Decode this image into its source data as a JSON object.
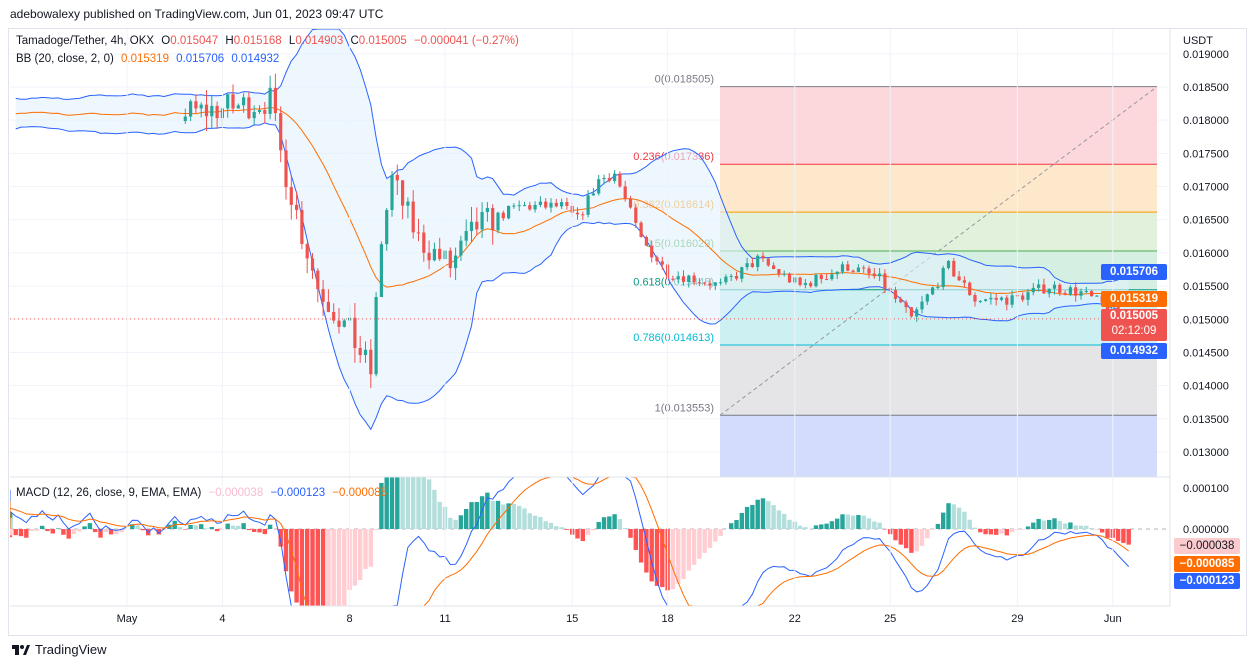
{
  "publisher": "adebowalexy published on TradingView.com, Jun 01, 2023 09:47 UTC",
  "legend": {
    "symbol": "Tamadoge/Tether, 4h, OKX",
    "o_label": "O",
    "o": "0.015047",
    "h_label": "H",
    "h": "0.015168",
    "l_label": "L",
    "l": "0.014903",
    "c_label": "C",
    "c": "0.015005",
    "change": "−0.000041 (−0.27%)",
    "bb_label": "BB (20, close, 2, 0)",
    "bb_basis": "0.015319",
    "bb_upper": "0.015706",
    "bb_lower": "0.014932",
    "macd_label": "MACD (12, 26, close, 9, EMA, EMA)",
    "macd_hist": "−0.000038",
    "macd_line": "−0.000123",
    "macd_signal": "−0.000085"
  },
  "currency": "USDT",
  "brand": "TradingView",
  "colors": {
    "up": "#26a69a",
    "down": "#ef5350",
    "bb": "#2962ff",
    "basis": "#ff6d00",
    "fill": "#e3f2fd"
  },
  "chart_data": {
    "type": "candlestick",
    "title": "Tamadoge/Tether, 4h, OKX",
    "ylim": [
      0.0128,
      0.0191
    ],
    "y_ticks": [
      "0.019000",
      "0.018500",
      "0.018000",
      "0.017500",
      "0.017000",
      "0.016500",
      "0.016000",
      "0.015500",
      "0.015000",
      "0.014500",
      "0.014000",
      "0.013500",
      "0.013000"
    ],
    "x_ticks": [
      {
        "label": "May",
        "i": 0
      },
      {
        "label": "4",
        "i": 18
      },
      {
        "label": "8",
        "i": 42
      },
      {
        "label": "11",
        "i": 60
      },
      {
        "label": "15",
        "i": 84
      },
      {
        "label": "18",
        "i": 102
      },
      {
        "label": "22",
        "i": 126
      },
      {
        "label": "25",
        "i": 144
      },
      {
        "label": "29",
        "i": 168
      },
      {
        "label": "Jun",
        "i": 186
      }
    ],
    "price_path_keypoints": [
      [
        0,
        0.0181
      ],
      [
        11,
        0.0181
      ],
      [
        20,
        0.0182
      ],
      [
        27,
        0.0183
      ],
      [
        29,
        0.0175
      ],
      [
        33,
        0.0163
      ],
      [
        36,
        0.0155
      ],
      [
        42,
        0.0148
      ],
      [
        46,
        0.0142
      ],
      [
        48,
        0.0162
      ],
      [
        50,
        0.0171
      ],
      [
        55,
        0.0162
      ],
      [
        61,
        0.0158
      ],
      [
        66,
        0.0164
      ],
      [
        74,
        0.0167
      ],
      [
        82,
        0.0167
      ],
      [
        85,
        0.0165
      ],
      [
        89,
        0.0171
      ],
      [
        92,
        0.0172
      ],
      [
        97,
        0.0162
      ],
      [
        102,
        0.0157
      ],
      [
        108,
        0.0156
      ],
      [
        112,
        0.0155
      ],
      [
        119,
        0.0159
      ],
      [
        127,
        0.0155
      ],
      [
        136,
        0.0158
      ],
      [
        142,
        0.0156
      ],
      [
        148,
        0.015
      ],
      [
        155,
        0.0158
      ],
      [
        160,
        0.0153
      ],
      [
        167,
        0.0153
      ],
      [
        174,
        0.0155
      ],
      [
        180,
        0.0154
      ],
      [
        189,
        0.015005
      ]
    ],
    "fib": {
      "levels": [
        {
          "label": "0(0.018505)",
          "ratio": 0,
          "price": 0.018505,
          "color": "#787b86",
          "fill": "#fcd8dc"
        },
        {
          "label": "0.236(0.017336)",
          "ratio": 0.236,
          "price": 0.017336,
          "color": "#f23645",
          "fill": "#fee8cc"
        },
        {
          "label": "0.382(0.016614)",
          "ratio": 0.382,
          "price": 0.016614,
          "color": "#ff9800",
          "fill": "#e2f1dc"
        },
        {
          "label": "0.5(0.016029)",
          "ratio": 0.5,
          "price": 0.016029,
          "color": "#4caf50",
          "fill": "#d5efe2"
        },
        {
          "label": "0.618(0.015445)",
          "ratio": 0.618,
          "price": 0.015445,
          "color": "#089981",
          "fill": "#cdf1f3"
        },
        {
          "label": "0.786(0.014613)",
          "ratio": 0.786,
          "price": 0.014613,
          "color": "#00bcd4",
          "fill": "#e5e5e7"
        },
        {
          "label": "1(0.013553)",
          "ratio": 1,
          "price": 0.013553,
          "color": "#787b86",
          "fill": "#d3dcfc"
        }
      ]
    },
    "last_price": {
      "value": "0.015005",
      "countdown": "02:12:09"
    },
    "bb_tags": {
      "upper": "0.015706",
      "basis": "0.015319",
      "lower": "0.014932"
    },
    "macd": {
      "y_ticks": [
        "0.000100",
        "0.000000"
      ],
      "hist": "−0.000038",
      "signal": "−0.000085",
      "macd": "−0.000123"
    }
  }
}
